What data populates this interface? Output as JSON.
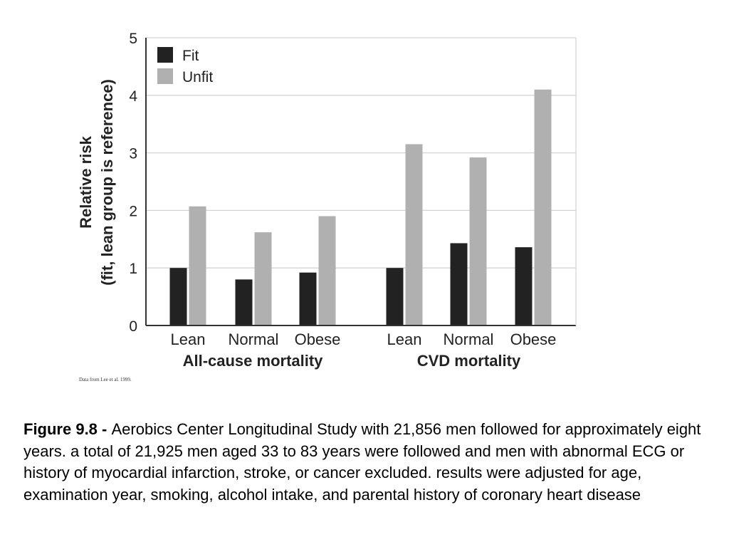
{
  "chart_data": {
    "type": "bar",
    "groups": [
      {
        "label": "All-cause mortality",
        "categories": [
          "Lean",
          "Normal",
          "Obese"
        ]
      },
      {
        "label": "CVD mortality",
        "categories": [
          "Lean",
          "Normal",
          "Obese"
        ]
      }
    ],
    "series": [
      {
        "name": "Fit",
        "color": "#222222",
        "values": [
          1.0,
          0.8,
          0.92,
          1.0,
          1.43,
          1.36
        ]
      },
      {
        "name": "Unfit",
        "color": "#b0b0b0",
        "values": [
          2.07,
          1.62,
          1.9,
          3.15,
          2.92,
          4.1
        ]
      }
    ],
    "ylabel_lines": [
      "Relative risk",
      "(fit, lean group is reference)"
    ],
    "ylim": [
      0,
      5
    ],
    "yticks": [
      0,
      1,
      2,
      3,
      4,
      5
    ],
    "grid": true,
    "legend_position": "top-left",
    "source_note": "Data from Lee et al. 1999."
  },
  "caption": {
    "label": "Figure 9.8  - ",
    "text": "Aerobics Center Longitudinal Study with 21,856 men followed for approximately eight years. a total of 21,925 men aged 33 to 83 years were followed and men with abnormal ECG or history of myocardial infarction, stroke, or cancer excluded. results were adjusted for age, examination year, smoking, alcohol intake, and parental history of coronary heart disease"
  }
}
